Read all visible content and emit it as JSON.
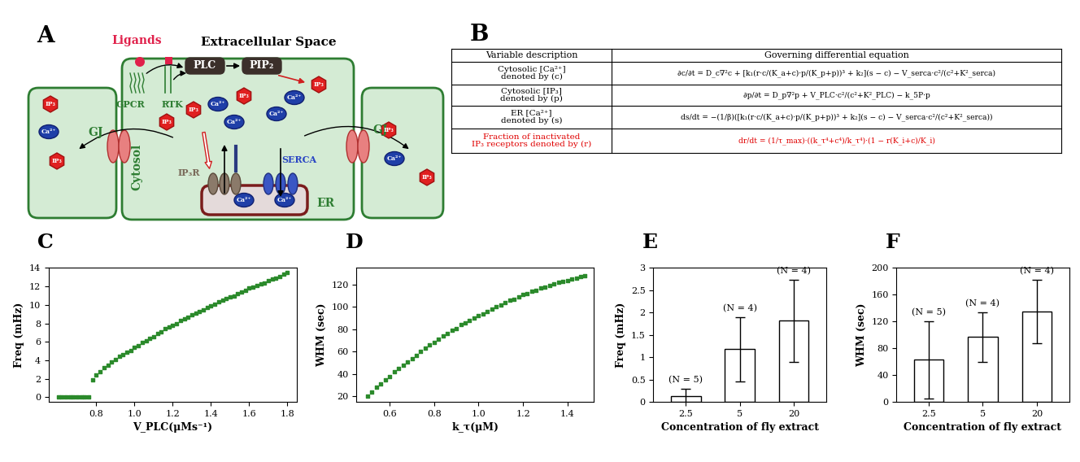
{
  "diagram": {
    "letter": "A",
    "title": "Extracellular Space",
    "ligands": "Ligands",
    "plc": "PLC",
    "pip2": "PIP₂",
    "ip3": "IP₃",
    "ca": "Ca²⁺",
    "gj": "GJ",
    "gpcr": "GPCR",
    "rtk": "RTK",
    "cytosol": "Cytosol",
    "ip3r": "IP₃R",
    "serca": "SERCA",
    "er": "ER"
  },
  "table": {
    "letter": "B",
    "header": [
      "Variable description",
      "Governing differential equation"
    ],
    "rows": [
      {
        "description": "Cytosolic [Ca²⁺]\ndenoted by (c)",
        "equation": "∂c/∂t = D_c∇²c + [k₁(r·c/(K_a+c)·p/(K_p+p))³ + k₂](s − c) − V_serca·c²/(c²+K²_serca)",
        "color": "#000000"
      },
      {
        "description": "Cytosolic [IP₃]\ndenoted by (p)",
        "equation": "∂p/∂t = D_p∇²p + V_PLC·c²/(c²+K²_PLC) − k_5P·p",
        "color": "#000000"
      },
      {
        "description": "ER [Ca²⁺]\ndenoted by (s)",
        "equation": "ds/dt = −(1/β)([k₁(r·c/(K_a+c)·p/(K_p+p))³ + k₂](s − c) − V_serca·c²/(c²+K²_serca))",
        "color": "#000000"
      },
      {
        "description": "Fraction of inactivated\nIP₃ receptors denoted by (r)",
        "equation": "dr/dt = (1/τ_max)·((k_τ⁴+c⁴)/k_τ⁴)·(1 − r(K_i+c)/K_i)",
        "color": "#e00000"
      }
    ]
  },
  "chart_data": [
    {
      "label": "C",
      "type": "scatter",
      "color": "#2b8a2b",
      "marker": "square",
      "xlabel": "V_PLC(μMs⁻¹)",
      "ylabel": "Freq (mHz)",
      "x": [
        0.6,
        0.62,
        0.64,
        0.66,
        0.68,
        0.7,
        0.72,
        0.74,
        0.76,
        0.78,
        0.8,
        0.82,
        0.84,
        0.86,
        0.88,
        0.9,
        0.92,
        0.94,
        0.96,
        0.98,
        1.0,
        1.02,
        1.04,
        1.06,
        1.08,
        1.1,
        1.12,
        1.14,
        1.16,
        1.18,
        1.2,
        1.22,
        1.24,
        1.26,
        1.28,
        1.3,
        1.32,
        1.34,
        1.36,
        1.38,
        1.4,
        1.42,
        1.44,
        1.46,
        1.48,
        1.5,
        1.52,
        1.54,
        1.56,
        1.58,
        1.6,
        1.62,
        1.64,
        1.66,
        1.68,
        1.7,
        1.72,
        1.74,
        1.76,
        1.78,
        1.8
      ],
      "values": [
        0,
        0,
        0,
        0,
        0,
        0,
        0,
        0,
        0,
        1.9,
        2.4,
        2.8,
        3.2,
        3.5,
        3.8,
        4.1,
        4.4,
        4.6,
        4.9,
        5.1,
        5.4,
        5.6,
        5.9,
        6.1,
        6.4,
        6.6,
        6.9,
        7.1,
        7.4,
        7.6,
        7.8,
        8.0,
        8.3,
        8.5,
        8.7,
        8.9,
        9.1,
        9.3,
        9.5,
        9.7,
        9.9,
        10.1,
        10.3,
        10.5,
        10.7,
        10.9,
        11.0,
        11.2,
        11.4,
        11.6,
        11.8,
        11.9,
        12.1,
        12.3,
        12.4,
        12.6,
        12.8,
        12.9,
        13.1,
        13.3,
        13.5
      ],
      "xlim": [
        0.55,
        1.85
      ],
      "ylim": [
        -0.5,
        14
      ],
      "xticks": [
        0.8,
        {
          "value": 1.0,
          "label": "1.0"
        },
        1.2,
        1.4,
        1.6,
        1.8
      ],
      "yticks": [
        0,
        2,
        4,
        6,
        8,
        10,
        12,
        14
      ]
    },
    {
      "label": "D",
      "type": "scatter",
      "color": "#2b8a2b",
      "marker": "square",
      "xlabel": "k_τ(μM)",
      "ylabel": "WHM (sec)",
      "x": [
        0.5,
        0.52,
        0.54,
        0.56,
        0.58,
        0.6,
        0.62,
        0.64,
        0.66,
        0.68,
        0.7,
        0.72,
        0.74,
        0.76,
        0.78,
        0.8,
        0.82,
        0.84,
        0.86,
        0.88,
        0.9,
        0.92,
        0.94,
        0.96,
        0.98,
        1.0,
        1.02,
        1.04,
        1.06,
        1.08,
        1.1,
        1.12,
        1.14,
        1.16,
        1.18,
        1.2,
        1.22,
        1.24,
        1.26,
        1.28,
        1.3,
        1.32,
        1.34,
        1.36,
        1.38,
        1.4,
        1.42,
        1.44,
        1.46,
        1.48
      ],
      "values": [
        20,
        24,
        28,
        31,
        35,
        38,
        42,
        45,
        48,
        51,
        54,
        57,
        60,
        63,
        66,
        68,
        71,
        74,
        76,
        79,
        81,
        84,
        86,
        88,
        90,
        92,
        94,
        96,
        98,
        100,
        102,
        104,
        106,
        107,
        109,
        111,
        112,
        114,
        115,
        117,
        118,
        119,
        121,
        122,
        123,
        124,
        125,
        126,
        127,
        128
      ],
      "xlim": [
        0.45,
        1.52
      ],
      "ylim": [
        15,
        135
      ],
      "xticks": [
        0.6,
        0.8,
        {
          "value": 1.0,
          "label": "1.0"
        },
        1.2,
        1.4
      ],
      "yticks": [
        20,
        40,
        60,
        80,
        100,
        120
      ]
    },
    {
      "label": "E",
      "type": "bar",
      "color": "#ffffff",
      "xlabel": "Concentration of fly extract",
      "ylabel": "Freq (mHz)",
      "categories": [
        "2.5",
        "5",
        "20"
      ],
      "values": [
        0.13,
        1.18,
        1.82
      ],
      "errors": [
        0.17,
        0.72,
        0.92
      ],
      "annotations": [
        "(N = 5)",
        "(N = 4)",
        "(N = 4)"
      ],
      "ylim": [
        0,
        3
      ],
      "yticks": [
        0,
        0.5,
        1,
        1.5,
        2,
        2.5,
        3
      ]
    },
    {
      "label": "F",
      "type": "bar",
      "color": "#ffffff",
      "xlabel": "Concentration of fly extract",
      "ylabel": "WHM (sec)",
      "categories": [
        "2.5",
        "5",
        "20"
      ],
      "values": [
        63,
        97,
        135
      ],
      "errors": [
        58,
        37,
        47
      ],
      "annotations": [
        "(N = 5)",
        "(N = 4)",
        "(N = 4)"
      ],
      "ylim": [
        0,
        200
      ],
      "yticks": [
        0,
        40,
        80,
        120,
        160,
        200
      ]
    }
  ]
}
